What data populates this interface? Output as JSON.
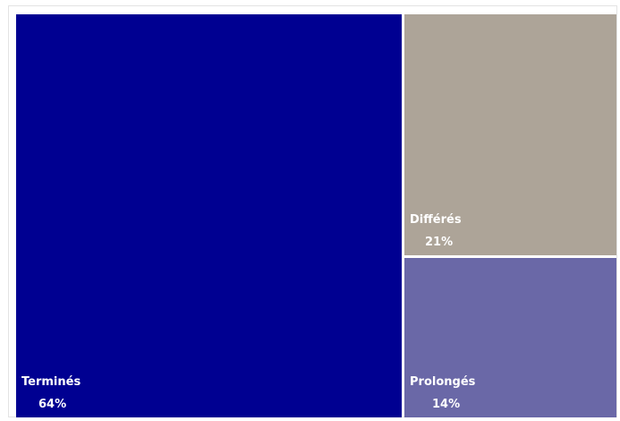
{
  "chart_data": {
    "type": "treemap",
    "items": [
      {
        "name": "Terminés",
        "value": 64,
        "value_label": "64%",
        "color": "#000091"
      },
      {
        "name": "Différés",
        "value": 21,
        "value_label": "21%",
        "color": "#ada498"
      },
      {
        "name": "Prolongés",
        "value": 14,
        "value_label": "14%",
        "color": "#6a68a7"
      }
    ]
  }
}
